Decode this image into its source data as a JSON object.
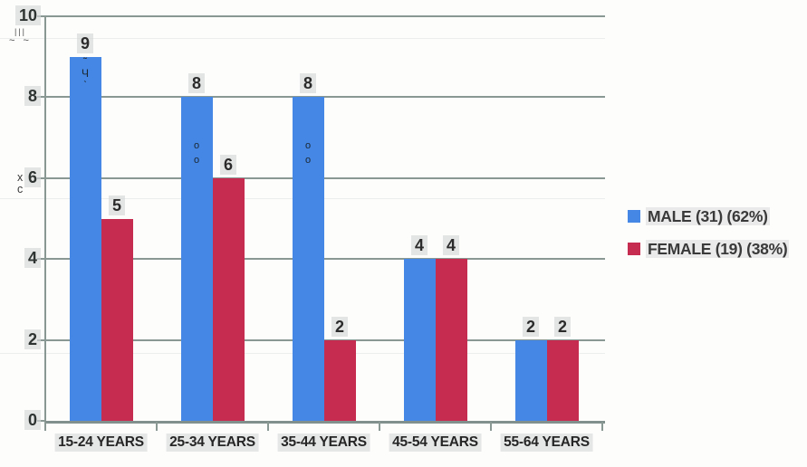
{
  "chart_data": {
    "type": "bar",
    "title": "",
    "categories": [
      "15-24 YEARS",
      "25-34 YEARS",
      "35-44 YEARS",
      "45-54 YEARS",
      "55-64 YEARS"
    ],
    "series": [
      {
        "name": "MALE (31) (62%)",
        "values": [
          9,
          8,
          8,
          4,
          2
        ],
        "color": "#4487e4"
      },
      {
        "name": "FEMALE (19) (38%)",
        "values": [
          5,
          6,
          2,
          4,
          2
        ],
        "color": "#c62b50"
      }
    ],
    "xlabel": "",
    "ylabel": "",
    "ylim": [
      0,
      10
    ],
    "yticks": [
      0,
      2,
      4,
      6,
      8,
      10
    ],
    "grid": true,
    "legend_position": "right"
  },
  "colors": {
    "male": "#4487e4",
    "female": "#c62b50",
    "gridline": "#8a9894",
    "label_text": "#2b2b2b",
    "label_highlight": "#d5d7d7"
  },
  "artifacts": {
    "ghost_below_10": {
      "line1": "|||",
      "line2": "~ ~"
    },
    "ghost_near_6": {
      "line1": "x",
      "line2": "c"
    },
    "ghost_in_bars": [
      {
        "category_index": 0,
        "glyphs": "˜ Ч ˋ"
      },
      {
        "category_index": 1,
        "glyphs": "o o"
      },
      {
        "category_index": 2,
        "glyphs": "o o"
      }
    ]
  }
}
